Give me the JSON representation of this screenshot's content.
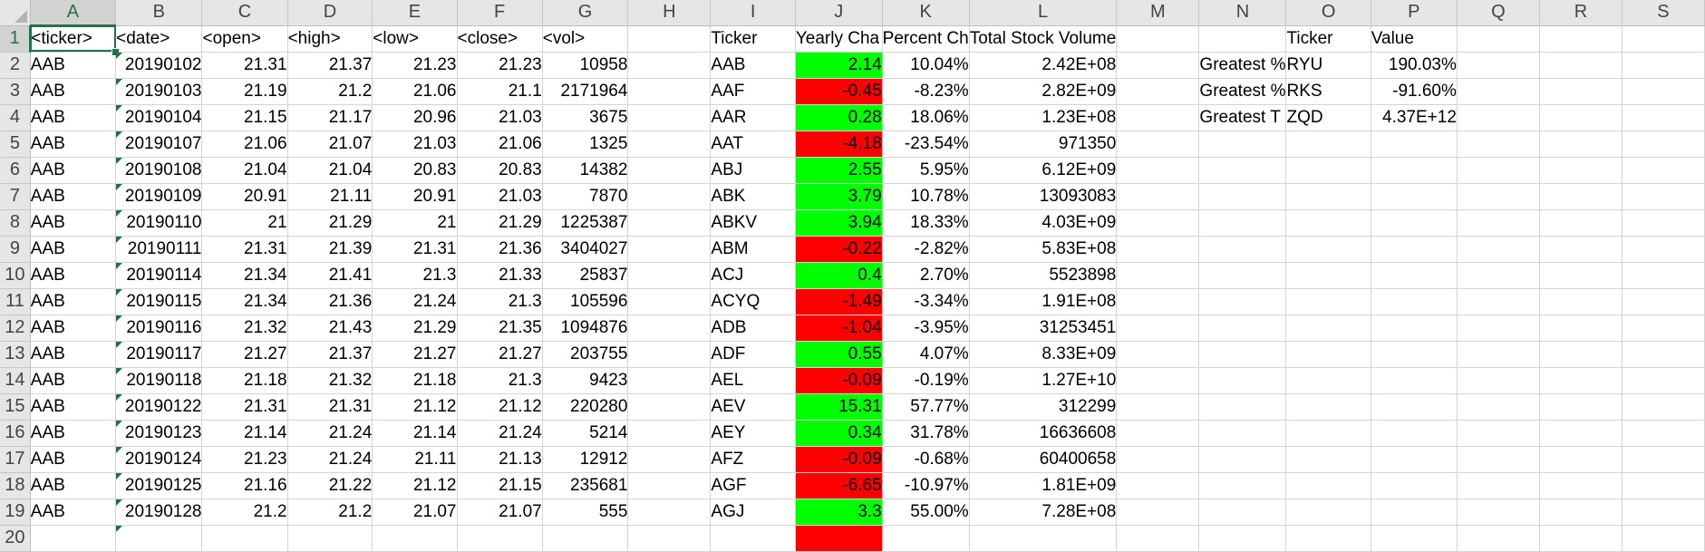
{
  "columns": [
    "A",
    "B",
    "C",
    "D",
    "E",
    "F",
    "G",
    "H",
    "I",
    "J",
    "K",
    "L",
    "M",
    "N",
    "O",
    "P",
    "Q",
    "R",
    "S"
  ],
  "rows": [
    {
      "n": "1",
      "A": "<ticker>",
      "B": "<date>",
      "C": "<open>",
      "D": "<high>",
      "E": "<low>",
      "F": "<close>",
      "G": "<vol>",
      "I": "Ticker",
      "J": "Yearly Cha",
      "K": "Percent Ch",
      "L": "Total Stock Volume",
      "O": "Ticker",
      "P": "Value"
    },
    {
      "n": "2",
      "A": "AAB",
      "B": "20190102",
      "C": "21.31",
      "D": "21.37",
      "E": "21.23",
      "F": "21.23",
      "G": "10958",
      "I": "AAB",
      "J": "2.14",
      "jc": "green",
      "K": "10.04%",
      "L": "2.42E+08",
      "N": "Greatest %",
      "O": "RYU",
      "P": "190.03%"
    },
    {
      "n": "3",
      "A": "AAB",
      "B": "20190103",
      "C": "21.19",
      "D": "21.2",
      "E": "21.06",
      "F": "21.1",
      "G": "2171964",
      "I": "AAF",
      "J": "-0.45",
      "jc": "red",
      "K": "-8.23%",
      "L": "2.82E+09",
      "N": "Greatest %",
      "O": "RKS",
      "P": "-91.60%"
    },
    {
      "n": "4",
      "A": "AAB",
      "B": "20190104",
      "C": "21.15",
      "D": "21.17",
      "E": "20.96",
      "F": "21.03",
      "G": "3675",
      "I": "AAR",
      "J": "0.28",
      "jc": "green",
      "K": "18.06%",
      "L": "1.23E+08",
      "N": "Greatest T",
      "O": "ZQD",
      "P": "4.37E+12"
    },
    {
      "n": "5",
      "A": "AAB",
      "B": "20190107",
      "C": "21.06",
      "D": "21.07",
      "E": "21.03",
      "F": "21.06",
      "G": "1325",
      "I": "AAT",
      "J": "-4.18",
      "jc": "red",
      "K": "-23.54%",
      "L": "971350"
    },
    {
      "n": "6",
      "A": "AAB",
      "B": "20190108",
      "C": "21.04",
      "D": "21.04",
      "E": "20.83",
      "F": "20.83",
      "G": "14382",
      "I": "ABJ",
      "J": "2.55",
      "jc": "green",
      "K": "5.95%",
      "L": "6.12E+09"
    },
    {
      "n": "7",
      "A": "AAB",
      "B": "20190109",
      "C": "20.91",
      "D": "21.11",
      "E": "20.91",
      "F": "21.03",
      "G": "7870",
      "I": "ABK",
      "J": "3.79",
      "jc": "green",
      "K": "10.78%",
      "L": "13093083"
    },
    {
      "n": "8",
      "A": "AAB",
      "B": "20190110",
      "C": "21",
      "D": "21.29",
      "E": "21",
      "F": "21.29",
      "G": "1225387",
      "I": "ABKV",
      "J": "3.94",
      "jc": "green",
      "K": "18.33%",
      "L": "4.03E+09"
    },
    {
      "n": "9",
      "A": "AAB",
      "B": "20190111",
      "C": "21.31",
      "D": "21.39",
      "E": "21.31",
      "F": "21.36",
      "G": "3404027",
      "I": "ABM",
      "J": "-0.22",
      "jc": "red",
      "K": "-2.82%",
      "L": "5.83E+08"
    },
    {
      "n": "10",
      "A": "AAB",
      "B": "20190114",
      "C": "21.34",
      "D": "21.41",
      "E": "21.3",
      "F": "21.33",
      "G": "25837",
      "I": "ACJ",
      "J": "0.4",
      "jc": "green",
      "K": "2.70%",
      "L": "5523898"
    },
    {
      "n": "11",
      "A": "AAB",
      "B": "20190115",
      "C": "21.34",
      "D": "21.36",
      "E": "21.24",
      "F": "21.3",
      "G": "105596",
      "I": "ACYQ",
      "J": "-1.49",
      "jc": "red",
      "K": "-3.34%",
      "L": "1.91E+08"
    },
    {
      "n": "12",
      "A": "AAB",
      "B": "20190116",
      "C": "21.32",
      "D": "21.43",
      "E": "21.29",
      "F": "21.35",
      "G": "1094876",
      "I": "ADB",
      "J": "-1.04",
      "jc": "red",
      "K": "-3.95%",
      "L": "31253451"
    },
    {
      "n": "13",
      "A": "AAB",
      "B": "20190117",
      "C": "21.27",
      "D": "21.37",
      "E": "21.27",
      "F": "21.27",
      "G": "203755",
      "I": "ADF",
      "J": "0.55",
      "jc": "green",
      "K": "4.07%",
      "L": "8.33E+09"
    },
    {
      "n": "14",
      "A": "AAB",
      "B": "20190118",
      "C": "21.18",
      "D": "21.32",
      "E": "21.18",
      "F": "21.3",
      "G": "9423",
      "I": "AEL",
      "J": "-0.09",
      "jc": "red",
      "K": "-0.19%",
      "L": "1.27E+10"
    },
    {
      "n": "15",
      "A": "AAB",
      "B": "20190122",
      "C": "21.31",
      "D": "21.31",
      "E": "21.12",
      "F": "21.12",
      "G": "220280",
      "I": "AEV",
      "J": "15.31",
      "jc": "green",
      "K": "57.77%",
      "L": "312299"
    },
    {
      "n": "16",
      "A": "AAB",
      "B": "20190123",
      "C": "21.14",
      "D": "21.24",
      "E": "21.14",
      "F": "21.24",
      "G": "5214",
      "I": "AEY",
      "J": "0.34",
      "jc": "green",
      "K": "31.78%",
      "L": "16636608"
    },
    {
      "n": "17",
      "A": "AAB",
      "B": "20190124",
      "C": "21.23",
      "D": "21.24",
      "E": "21.11",
      "F": "21.13",
      "G": "12912",
      "I": "AFZ",
      "J": "-0.09",
      "jc": "red",
      "K": "-0.68%",
      "L": "60400658"
    },
    {
      "n": "18",
      "A": "AAB",
      "B": "20190125",
      "C": "21.16",
      "D": "21.22",
      "E": "21.12",
      "F": "21.15",
      "G": "235681",
      "I": "AGF",
      "J": "-6.65",
      "jc": "red",
      "K": "-10.97%",
      "L": "1.81E+09"
    },
    {
      "n": "19",
      "A": "AAB",
      "B": "20190128",
      "C": "21.2",
      "D": "21.2",
      "E": "21.07",
      "F": "21.07",
      "G": "555",
      "I": "AGJ",
      "J": "3.3",
      "jc": "green",
      "K": "55.00%",
      "L": "7.28E+08"
    },
    {
      "n": "20",
      "jc": "red"
    }
  ],
  "colors": {
    "positive_change": "#00ff00",
    "negative_change": "#ff0000",
    "selection": "#217346"
  },
  "active_cell": "A1"
}
